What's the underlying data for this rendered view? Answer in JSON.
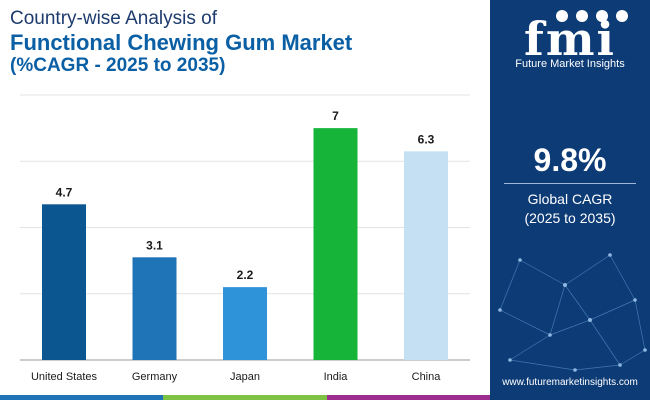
{
  "title": {
    "line1": "Country-wise Analysis of",
    "line2": "Functional Chewing Gum Market",
    "line3": "(%CAGR - 2025 to 2035)"
  },
  "chart_data": {
    "type": "bar",
    "categories": [
      "United States",
      "Germany",
      "Japan",
      "India",
      "China"
    ],
    "values": [
      4.7,
      3.1,
      2.2,
      7,
      6.3
    ],
    "value_labels": [
      "4.7",
      "3.1",
      "2.2",
      "7",
      "6.3"
    ],
    "colors": [
      "#0b5591",
      "#1f73b7",
      "#2f93da",
      "#16b53a",
      "#c5e0f3"
    ],
    "ylim": [
      0,
      8
    ],
    "grid": true,
    "legend": "none"
  },
  "sidebar": {
    "logo_text": "fmi",
    "brand_name": "Future Market Insights",
    "cagr_value": "9.8%",
    "cagr_label_line1": "Global CAGR",
    "cagr_label_line2": "(2025 to 2035)",
    "website": "www.futuremarketinsights.com"
  },
  "colors": {
    "sidebar_bg": "#0d3b76",
    "title_dark": "#1d3b6e",
    "title_accent": "#0b5fa5",
    "bottom_bar": [
      "#1f73b7",
      "#7dc242",
      "#9b2d8e"
    ]
  },
  "icons": [
    "logo-icon",
    "network-graphic-icon"
  ]
}
